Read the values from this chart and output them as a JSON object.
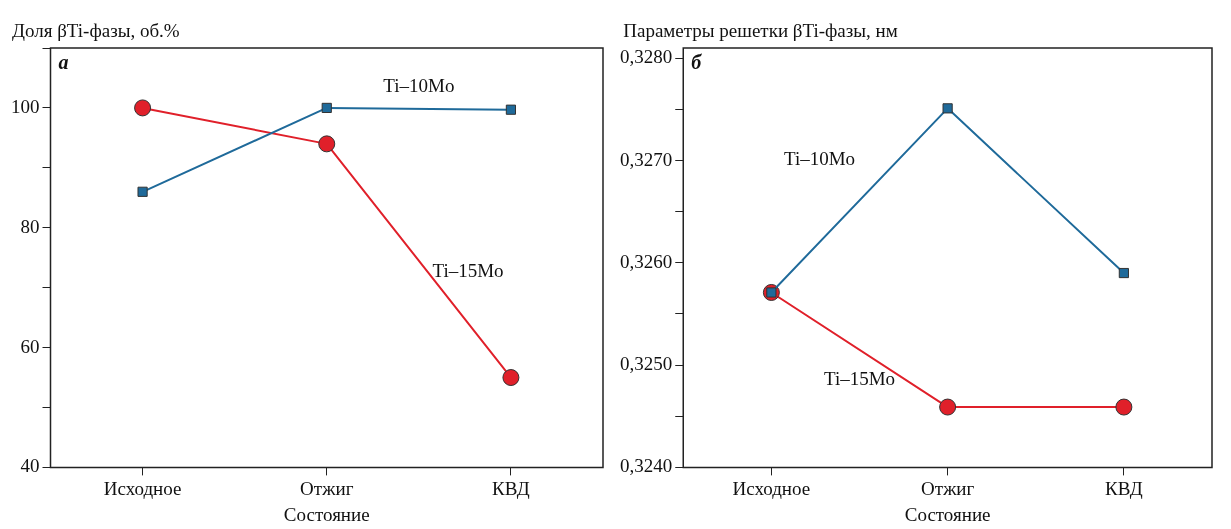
{
  "chart_data": [
    {
      "type": "line",
      "ylabel": "Доля βTi-фазы, об.%",
      "xlabel": "Состояние",
      "annotations": [
        "а"
      ],
      "categories": [
        "Исходное",
        "Отжиг",
        "КВД"
      ],
      "series": [
        {
          "name": "Ti–10Mo",
          "color": "#1f6a9a",
          "marker": "square",
          "values": [
            86,
            100,
            99.7
          ]
        },
        {
          "name": "Ti–15Mo",
          "color": "#e0202a",
          "marker": "circle",
          "values": [
            100,
            94,
            55
          ]
        }
      ],
      "ylim": [
        40,
        110
      ],
      "yticks": [
        40,
        {
          "value": 50,
          "label": null
        },
        60,
        {
          "value": 70,
          "label": null
        },
        80,
        {
          "value": 90,
          "label": null
        },
        100,
        {
          "value": 110,
          "label": null
        }
      ],
      "grid": false,
      "legend": false,
      "line_style": "solid"
    },
    {
      "type": "line",
      "ylabel": "Параметры решетки βTi-фазы, нм",
      "xlabel": "Состояние",
      "annotations": [
        "б"
      ],
      "categories": [
        "Исходное",
        "Отжиг",
        "КВД"
      ],
      "series": [
        {
          "name": "Ti–10Mo",
          "color": "#1f6a9a",
          "marker": "square",
          "values": [
            0.32571,
            0.32751,
            0.3259
          ]
        },
        {
          "name": "Ti–15Mo",
          "color": "#e0202a",
          "marker": "circle",
          "values": [
            0.32571,
            0.32459,
            0.32459
          ]
        }
      ],
      "ylim": [
        0.324,
        0.3281
      ],
      "yticks": [
        {
          "value": 0.324,
          "label": "0,3240"
        },
        {
          "value": 0.3245,
          "label": null
        },
        {
          "value": 0.325,
          "label": "0,3250"
        },
        {
          "value": 0.3255,
          "label": null
        },
        {
          "value": 0.326,
          "label": "0,3260"
        },
        {
          "value": 0.3265,
          "label": null
        },
        {
          "value": 0.327,
          "label": "0,3270"
        },
        {
          "value": 0.3275,
          "label": null
        },
        {
          "value": 0.328,
          "label": "0,3280"
        }
      ],
      "grid": false,
      "legend": false,
      "line_style": "solid"
    }
  ]
}
